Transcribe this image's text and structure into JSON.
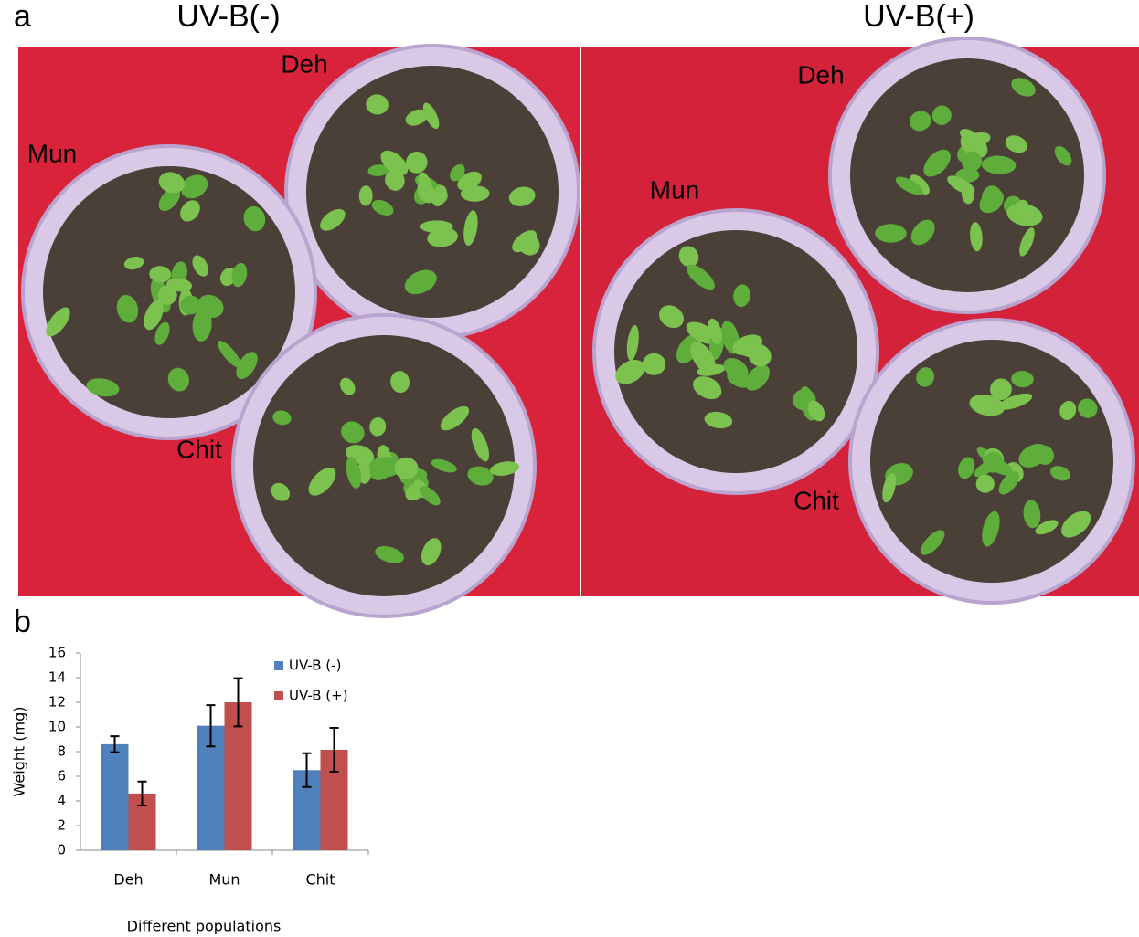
{
  "panel_a": {
    "label": "a",
    "left_title": "UV-B(-)",
    "right_title": "UV-B(+)",
    "left_pots": [
      "Deh",
      "Mun",
      "Chit"
    ],
    "right_pots": [
      "Deh",
      "Mun",
      "Chit"
    ]
  },
  "panel_b": {
    "label": "b"
  },
  "chart_data": {
    "type": "bar",
    "categories": [
      "Deh",
      "Mun",
      "Chit"
    ],
    "series": [
      {
        "name": "UV-B (-)",
        "color": "#4f81bd",
        "values": [
          8.6,
          10.1,
          6.5
        ],
        "errors": [
          0.65,
          1.67,
          1.37
        ]
      },
      {
        "name": "UV-B (+)",
        "color": "#c0504d",
        "values": [
          4.6,
          12,
          8.15
        ],
        "errors": [
          0.97,
          1.95,
          1.78
        ]
      }
    ],
    "ylim": [
      0,
      16
    ],
    "yticks": [
      0,
      2,
      4,
      6,
      8,
      10,
      12,
      14,
      16
    ],
    "y_label": "Weight (mg)",
    "x_label": "Different populations",
    "legend": "upper right"
  }
}
